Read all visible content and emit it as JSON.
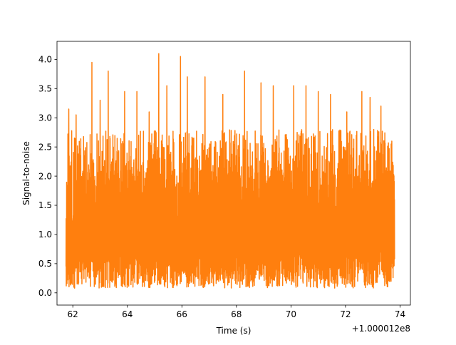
{
  "chart_data": {
    "type": "line",
    "title": "",
    "xlabel": "Time (s)",
    "ylabel": "Signal-to-noise",
    "x_offset_label": "+1.000012e8",
    "xlim": [
      61.42,
      74.38
    ],
    "ylim": [
      -0.21,
      4.31
    ],
    "xticks": [
      62,
      64,
      66,
      68,
      70,
      72,
      74
    ],
    "xtick_labels": [
      "62",
      "64",
      "66",
      "68",
      "70",
      "72",
      "74"
    ],
    "yticks": [
      0.0,
      0.5,
      1.0,
      1.5,
      2.0,
      2.5,
      3.0,
      3.5,
      4.0
    ],
    "ytick_labels": [
      "0.0",
      "0.5",
      "1.0",
      "1.5",
      "2.0",
      "2.5",
      "3.0",
      "3.5",
      "4.0"
    ],
    "grid": false,
    "series": [
      {
        "color": "#ff7f0e",
        "x_start": 61.75,
        "x_end": 73.8,
        "description_values": "dense noisy SNR time series, mostly between ~0.1 and ~2.8",
        "peaks": [
          {
            "x": 61.85,
            "y": 3.15
          },
          {
            "x": 62.12,
            "y": 3.05
          },
          {
            "x": 62.7,
            "y": 3.95
          },
          {
            "x": 63.0,
            "y": 3.3
          },
          {
            "x": 63.3,
            "y": 3.8
          },
          {
            "x": 63.9,
            "y": 3.45
          },
          {
            "x": 64.35,
            "y": 3.45
          },
          {
            "x": 64.8,
            "y": 3.1
          },
          {
            "x": 65.15,
            "y": 4.1
          },
          {
            "x": 65.45,
            "y": 3.55
          },
          {
            "x": 65.95,
            "y": 4.05
          },
          {
            "x": 66.2,
            "y": 3.7
          },
          {
            "x": 66.85,
            "y": 3.7
          },
          {
            "x": 67.5,
            "y": 3.4
          },
          {
            "x": 68.3,
            "y": 3.8
          },
          {
            "x": 68.9,
            "y": 3.6
          },
          {
            "x": 69.35,
            "y": 3.55
          },
          {
            "x": 70.1,
            "y": 3.55
          },
          {
            "x": 70.55,
            "y": 3.55
          },
          {
            "x": 71.0,
            "y": 3.45
          },
          {
            "x": 71.45,
            "y": 3.4
          },
          {
            "x": 72.05,
            "y": 3.1
          },
          {
            "x": 72.6,
            "y": 3.45
          },
          {
            "x": 72.9,
            "y": 3.35
          },
          {
            "x": 73.3,
            "y": 3.2
          },
          {
            "x": 73.7,
            "y": 2.6
          }
        ]
      }
    ]
  }
}
